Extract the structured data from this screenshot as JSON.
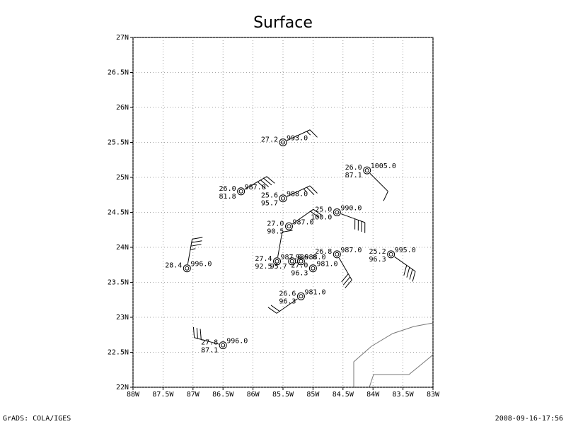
{
  "chart_data": {
    "type": "station",
    "title": "Surface",
    "xlim": [
      -88,
      -83
    ],
    "ylim": [
      22,
      27
    ],
    "xticks": [
      {
        "value": -88,
        "label": "88W"
      },
      {
        "value": -87.5,
        "label": "87.5W"
      },
      {
        "value": -87,
        "label": "87W"
      },
      {
        "value": -86.5,
        "label": "86.5W"
      },
      {
        "value": -86,
        "label": "86W"
      },
      {
        "value": -85.5,
        "label": "85.5W"
      },
      {
        "value": -85,
        "label": "85W"
      },
      {
        "value": -84.5,
        "label": "84.5W"
      },
      {
        "value": -84,
        "label": "84W"
      },
      {
        "value": -83.5,
        "label": "83.5W"
      },
      {
        "value": -83,
        "label": "83W"
      }
    ],
    "yticks": [
      {
        "value": 22,
        "label": "22N"
      },
      {
        "value": 22.5,
        "label": "22.5N"
      },
      {
        "value": 23,
        "label": "23N"
      },
      {
        "value": 23.5,
        "label": "23.5N"
      },
      {
        "value": 24,
        "label": "24N"
      },
      {
        "value": 24.5,
        "label": "24.5N"
      },
      {
        "value": 25,
        "label": "25N"
      },
      {
        "value": 25.5,
        "label": "25.5N"
      },
      {
        "value": 26,
        "label": "26N"
      },
      {
        "value": 26.5,
        "label": "26.5N"
      },
      {
        "value": 27,
        "label": "27N"
      }
    ],
    "grid": true,
    "stations": {
      "lon": [
        -85.5,
        -84.1,
        -86.2,
        -85.5,
        -84.6,
        -85.4,
        -87.1,
        -83.7,
        -84.6,
        -85.6,
        -85.35,
        -85.2,
        -85.0,
        -85.2,
        -86.5
      ],
      "lat": [
        25.5,
        25.1,
        24.8,
        24.7,
        24.5,
        24.3,
        23.7,
        23.9,
        23.9,
        23.8,
        23.8,
        23.8,
        23.7,
        23.3,
        22.6
      ],
      "temperature": [
        27.2,
        26.0,
        26.0,
        25.6,
        25.0,
        27.0,
        28.4,
        25.2,
        26.8,
        27.4,
        null,
        null,
        27.0,
        26.6,
        27.8
      ],
      "temperature_labels": [
        "27.2",
        "26.0",
        "26.0",
        "25.6",
        "25.0",
        "27.0",
        "28.4",
        "25.2",
        "26.8",
        "27.4",
        null,
        null,
        "27.0",
        "26.6",
        "27.8"
      ],
      "pressure": [
        993.0,
        1005.0,
        987.0,
        988.0,
        990.0,
        987.0,
        996.0,
        995.0,
        987.0,
        987.0,
        986.0,
        988.0,
        981.0,
        981.0,
        996.0
      ],
      "pressure_labels": [
        "993.0",
        "1005.0",
        "987.0",
        "988.0",
        "990.0",
        "987.0",
        "996.0",
        "995.0",
        "987.0",
        "987.0",
        "986.0",
        "988.0",
        "981.0",
        "981.0",
        "996.0"
      ],
      "humidity": [
        null,
        87.1,
        81.8,
        95.7,
        100.0,
        90.5,
        null,
        96.3,
        null,
        92.5,
        95.7,
        null,
        96.3,
        96.3,
        87.1
      ],
      "humidity_labels": [
        null,
        "87.1",
        "81.8",
        "95.7",
        "100.0",
        "90.5",
        null,
        "96.3",
        null,
        "92.5",
        "95.7",
        null,
        "96.3",
        "96.3",
        "87.1"
      ],
      "wind_direction": [
        65,
        135,
        60,
        65,
        110,
        55,
        10,
        125,
        150,
        10,
        null,
        null,
        null,
        235,
        285
      ],
      "wind_speed": [
        15,
        10,
        40,
        25,
        40,
        20,
        35,
        40,
        30,
        10,
        null,
        null,
        null,
        20,
        30
      ]
    }
  },
  "footer": {
    "left": "GrADS: COLA/IGES",
    "right": "2008-09-16-17:56"
  }
}
